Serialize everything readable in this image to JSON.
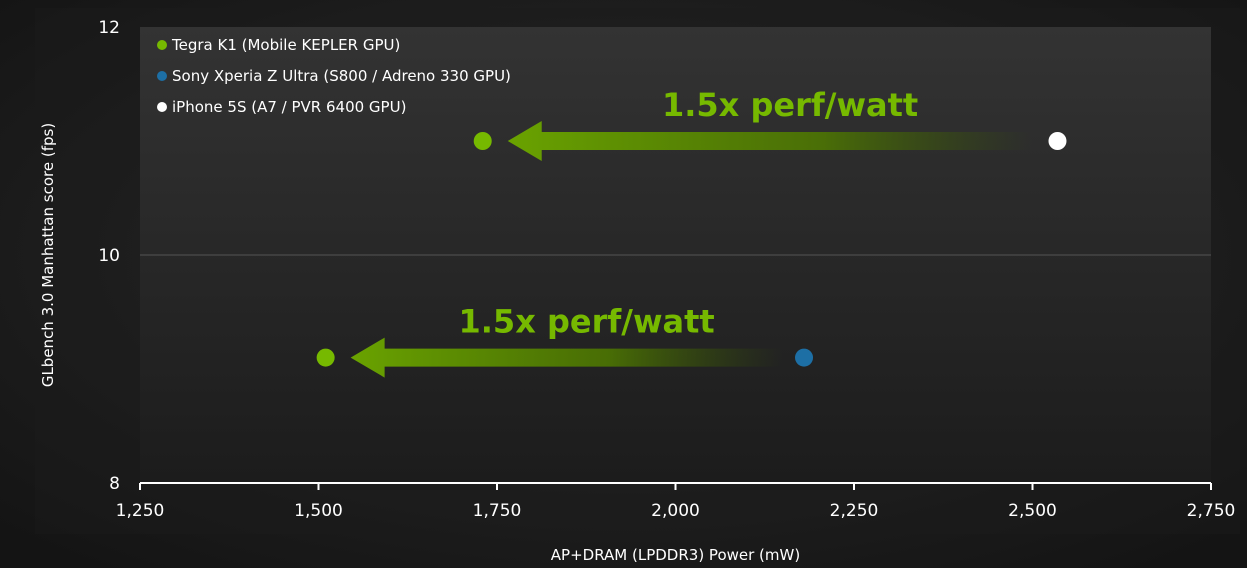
{
  "colors": {
    "background": "#1a1a1a",
    "plot_background": "#242424",
    "green": "#76b900",
    "blue": "#1d6fa5",
    "white": "#ffffff",
    "text": "#ffffff"
  },
  "chart_data": {
    "type": "scatter",
    "title": "",
    "xlabel": "AP+DRAM (LPDDR3) Power (mW)",
    "ylabel": "GLbench 3.0 Manhattan score (fps)",
    "xlim": [
      1250,
      2750
    ],
    "ylim": [
      8,
      12
    ],
    "x_ticks": [
      1250,
      1500,
      1750,
      2000,
      2250,
      2500,
      2750
    ],
    "x_tick_labels": [
      "1,250",
      "1,500",
      "1,750",
      "2,000",
      "2,250",
      "2,500",
      "2,750"
    ],
    "y_ticks": [
      8,
      10,
      12
    ],
    "y_tick_labels": [
      "8",
      "10",
      "12"
    ],
    "grid": "horizontal at 10",
    "legend_position": "top-left",
    "series": [
      {
        "name": "Tegra K1 (Mobile KEPLER GPU)",
        "color": "#76b900",
        "points": [
          {
            "x": 1730,
            "y": 11.0
          },
          {
            "x": 1510,
            "y": 9.1
          }
        ]
      },
      {
        "name": "Sony Xperia Z Ultra (S800 / Adreno 330 GPU)",
        "color": "#1d6fa5",
        "points": [
          {
            "x": 2180,
            "y": 9.1
          }
        ]
      },
      {
        "name": "iPhone 5S (A7 / PVR 6400 GPU)",
        "color": "#ffffff",
        "points": [
          {
            "x": 2535,
            "y": 11.0
          }
        ]
      }
    ],
    "annotations": [
      {
        "text": "1.5x perf/watt",
        "arrow_from": {
          "x": 2500,
          "y": 11.0
        },
        "arrow_to": {
          "x": 1765,
          "y": 11.0
        }
      },
      {
        "text": "1.5x perf/watt",
        "arrow_from": {
          "x": 2150,
          "y": 9.1
        },
        "arrow_to": {
          "x": 1545,
          "y": 9.1
        }
      }
    ]
  }
}
